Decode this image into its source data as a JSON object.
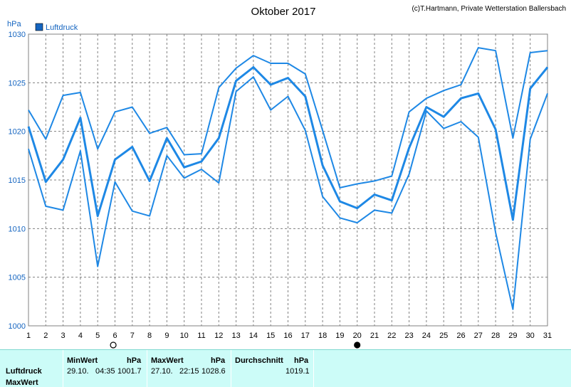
{
  "chart_data": {
    "type": "line",
    "title": "Oktober 2017",
    "credit": "(c)T.Hartmann, Private Wetterstation Ballersbach",
    "ylabel": "hPa",
    "ylim": [
      1000,
      1030
    ],
    "yticks": [
      1000,
      1005,
      1010,
      1015,
      1020,
      1025,
      1030
    ],
    "x": [
      1,
      2,
      3,
      4,
      5,
      6,
      7,
      8,
      9,
      10,
      11,
      12,
      13,
      14,
      15,
      16,
      17,
      18,
      19,
      20,
      21,
      22,
      23,
      24,
      25,
      26,
      27,
      28,
      29,
      30,
      31
    ],
    "grid": true,
    "legend": {
      "label": "Luftdruck",
      "position": "top-left"
    },
    "colors": {
      "line": "#1e88e5",
      "legend_box": "#1565c0"
    },
    "moon_markers": [
      {
        "day": 5.9,
        "phase": "full"
      },
      {
        "day": 20,
        "phase": "new"
      }
    ],
    "series": [
      {
        "role": "max",
        "values": [
          1022.2,
          1019.2,
          1023.7,
          1024.0,
          1018.2,
          1022.0,
          1022.5,
          1019.8,
          1020.4,
          1017.6,
          1017.7,
          1024.5,
          1026.5,
          1027.8,
          1027.0,
          1027.0,
          1025.9,
          1020.1,
          1014.2,
          1014.6,
          1014.9,
          1015.4,
          1022.0,
          1023.4,
          1024.2,
          1024.8,
          1028.6,
          1028.3,
          1019.3,
          1028.1,
          1028.3
        ]
      },
      {
        "role": "avg",
        "values": [
          1020.5,
          1014.8,
          1017.1,
          1021.4,
          1011.3,
          1017.1,
          1018.4,
          1014.9,
          1019.3,
          1016.3,
          1016.9,
          1019.3,
          1025.2,
          1026.6,
          1024.8,
          1025.5,
          1023.6,
          1016.5,
          1012.8,
          1012.1,
          1013.5,
          1012.9,
          1018.3,
          1022.5,
          1021.5,
          1023.4,
          1023.9,
          1020.2,
          1010.9,
          1024.4,
          1026.6
        ]
      },
      {
        "role": "min",
        "values": [
          1018.2,
          1012.3,
          1011.9,
          1018.0,
          1006.1,
          1014.8,
          1011.8,
          1011.3,
          1017.5,
          1015.2,
          1016.1,
          1014.7,
          1024.1,
          1025.6,
          1022.2,
          1023.6,
          1020.1,
          1013.3,
          1011.1,
          1010.6,
          1011.9,
          1011.6,
          1015.6,
          1022.1,
          1020.3,
          1021.0,
          1019.4,
          1009.6,
          1001.7,
          1019.2,
          1023.9
        ]
      }
    ]
  },
  "stats": {
    "row_label": "Luftdruck",
    "row_label2": "MaxWert",
    "min": {
      "title": "MinWert",
      "unit": "hPa",
      "date": "29.10.",
      "time": "04:35",
      "value": "1001.7"
    },
    "max": {
      "title": "MaxWert",
      "unit": "hPa",
      "date": "27.10.",
      "time": "22:15",
      "value": "1028.6"
    },
    "avg": {
      "title": "Durchschnitt",
      "unit": "hPa",
      "value": "1019.1"
    }
  }
}
